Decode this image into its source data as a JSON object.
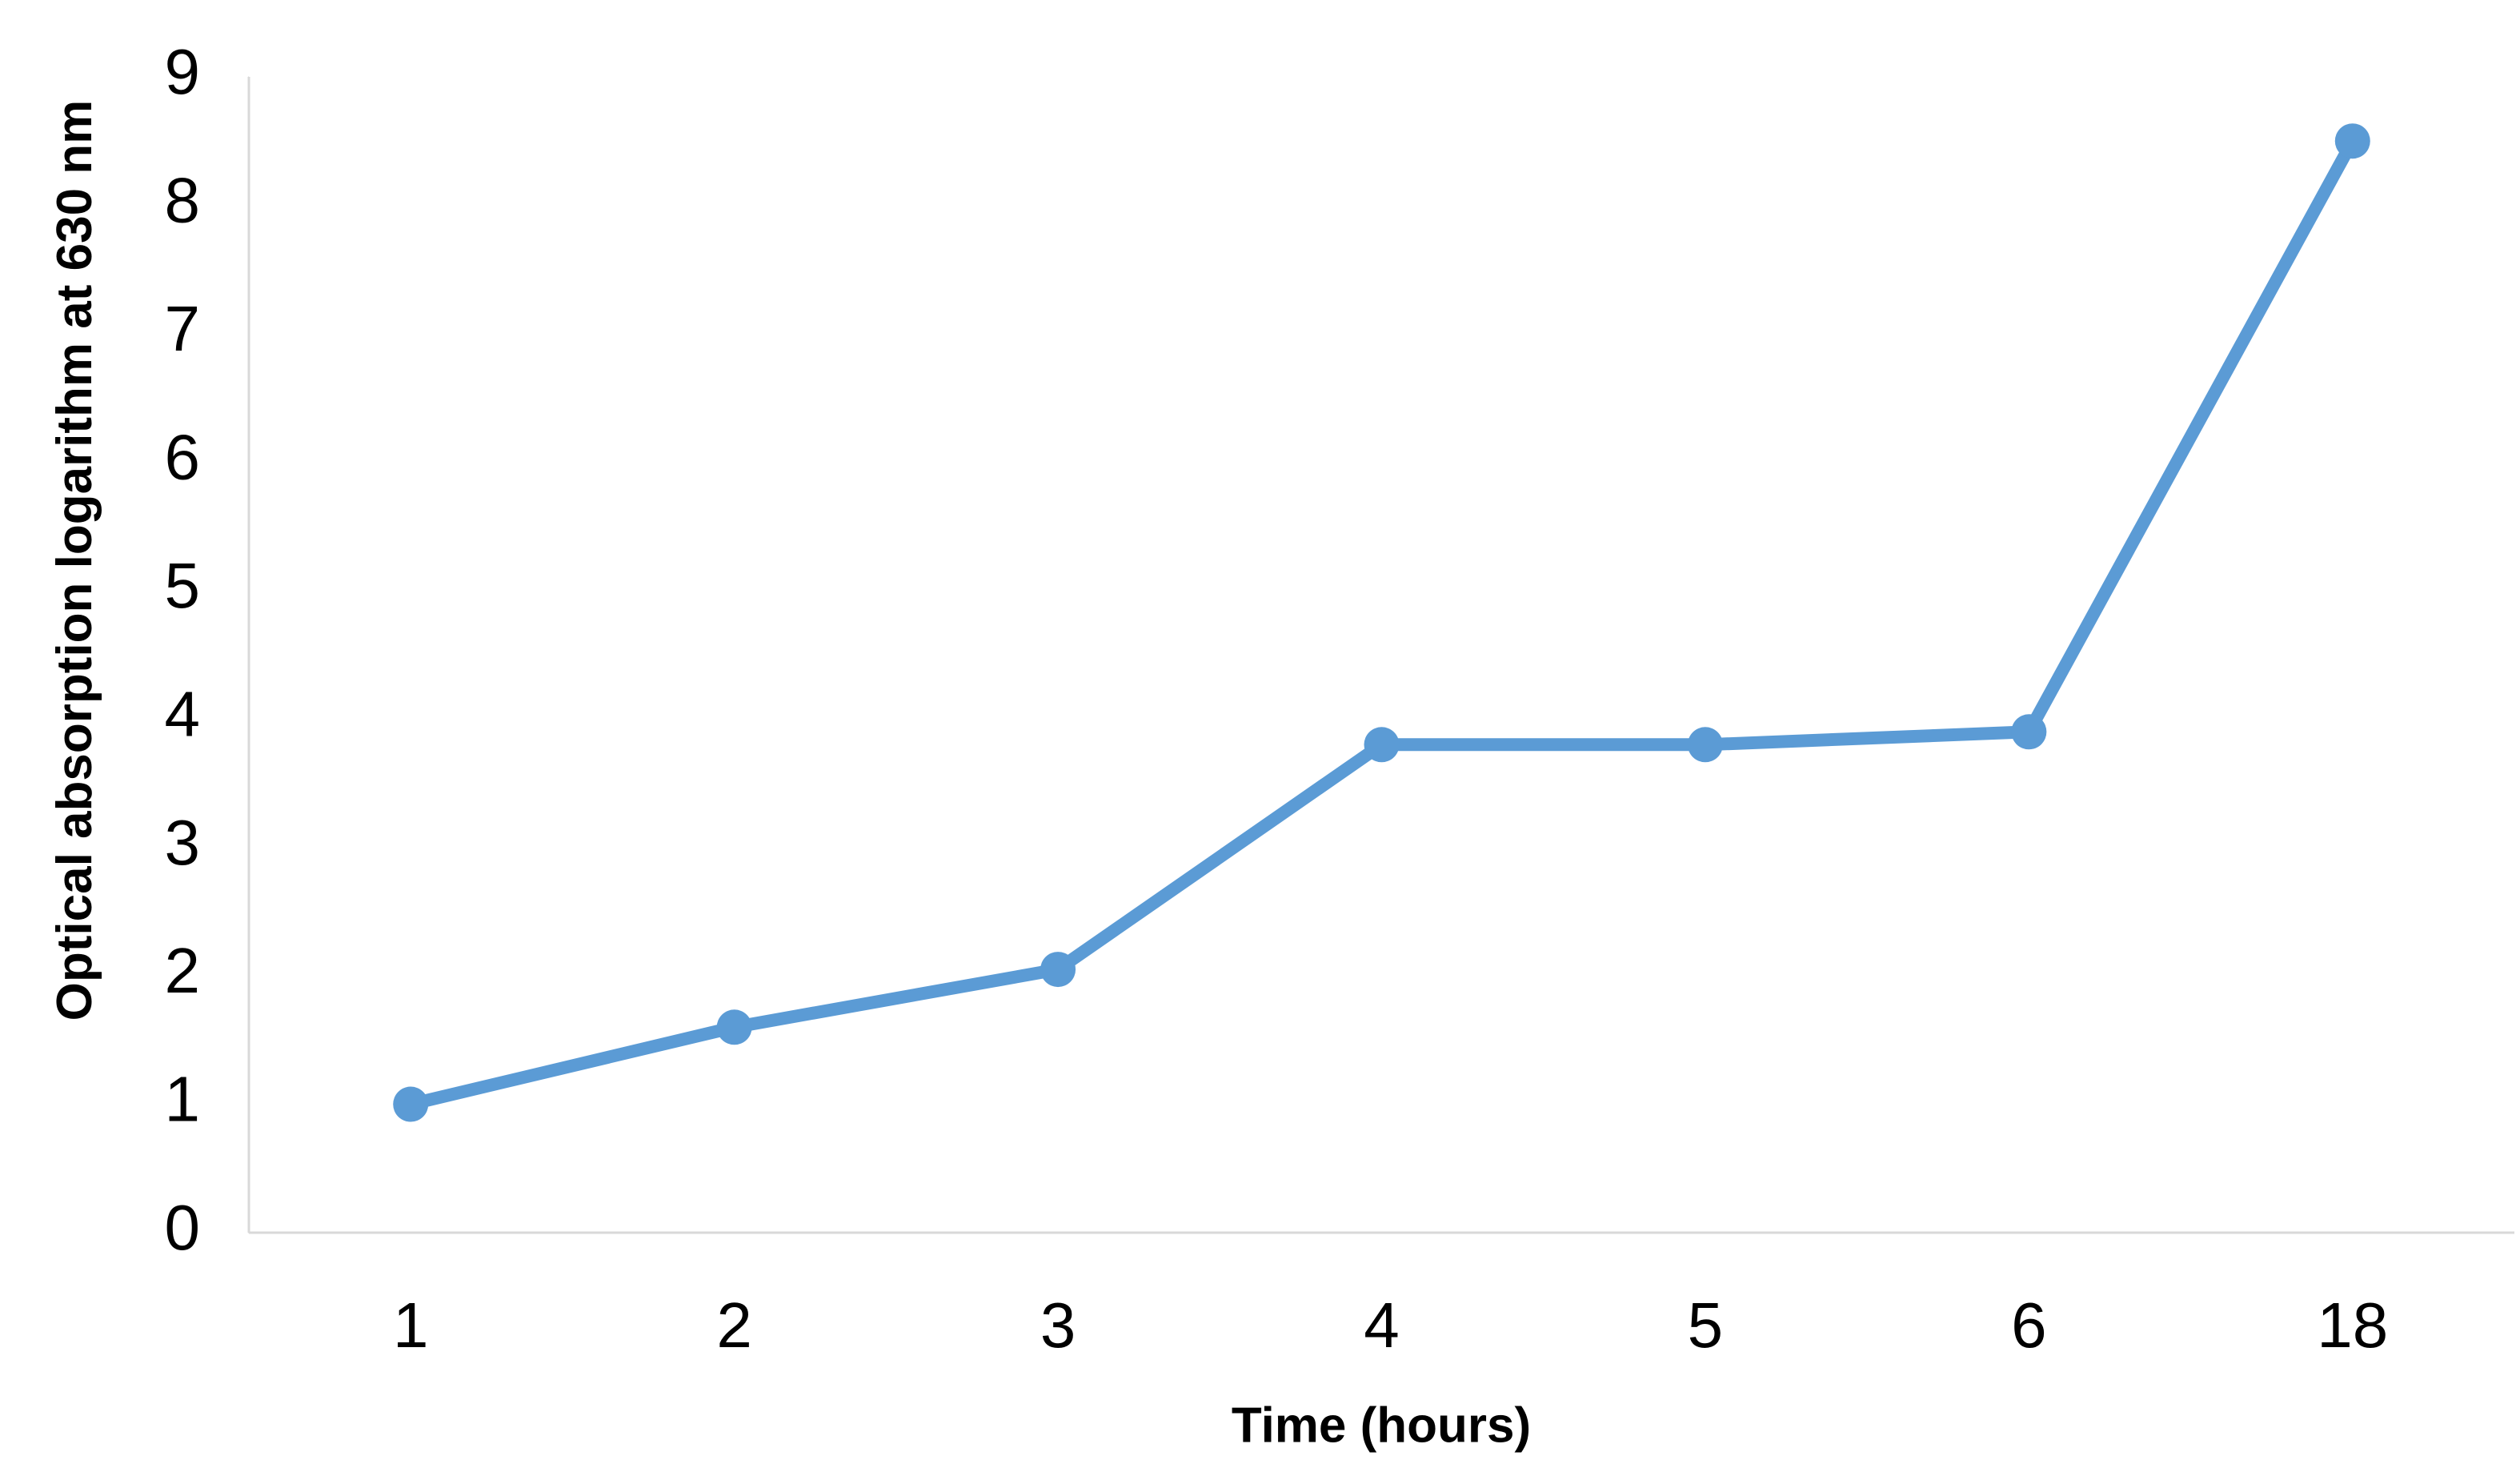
{
  "chart_data": {
    "type": "line",
    "y_label": "Optical absorption logarithm at 630 nm",
    "x_label": "Time (hours)",
    "categories": [
      "1",
      "2",
      "3",
      "4",
      "5",
      "6",
      "18"
    ],
    "values": [
      1.0,
      1.6,
      2.05,
      3.8,
      3.8,
      3.9,
      8.5
    ],
    "color": "#5b9bd5",
    "ylim": [
      0,
      9
    ],
    "yticks": [
      0,
      1,
      2,
      3,
      4,
      5,
      6,
      7,
      8,
      9
    ],
    "grid": false,
    "markers": true
  }
}
